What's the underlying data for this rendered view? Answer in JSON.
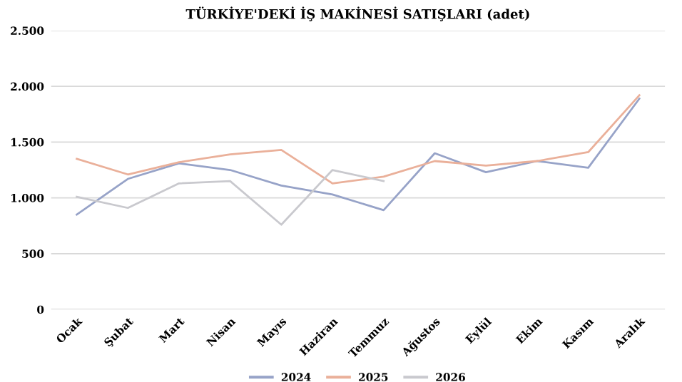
{
  "chart_data": {
    "type": "line",
    "title": "TÜRKİYE'DEKİ İŞ MAKİNESİ SATIŞLARI (adet)",
    "categories": [
      "Ocak",
      "Şubat",
      "Mart",
      "Nisan",
      "Mayıs",
      "Haziran",
      "Temmuz",
      "Ağustos",
      "Eylül",
      "Ekim",
      "Kasım",
      "Aralık"
    ],
    "series": [
      {
        "name": "2024",
        "color": "#97a3c8",
        "values": [
          850,
          1170,
          1310,
          1250,
          1110,
          1030,
          890,
          1400,
          1230,
          1330,
          1270,
          1890
        ]
      },
      {
        "name": "2025",
        "color": "#eab09a",
        "values": [
          1350,
          1210,
          1320,
          1390,
          1430,
          1130,
          1190,
          1330,
          1290,
          1330,
          1410,
          1920
        ]
      },
      {
        "name": "2026",
        "color": "#c9c9ce",
        "values": [
          1010,
          910,
          1130,
          1150,
          760,
          1250,
          1150,
          null,
          null,
          null,
          null,
          null
        ]
      }
    ],
    "ylim": [
      0,
      2500
    ],
    "yticks": [
      {
        "value": 0,
        "label": "0"
      },
      {
        "value": 500,
        "label": "500"
      },
      {
        "value": 1000,
        "label": "1.000"
      },
      {
        "value": 1500,
        "label": "1.500"
      },
      {
        "value": 2000,
        "label": "2.000"
      },
      {
        "value": 2500,
        "label": "2.500"
      }
    ],
    "grid": "y",
    "legend": "bottom",
    "marker": "none",
    "line_style": "solid"
  }
}
